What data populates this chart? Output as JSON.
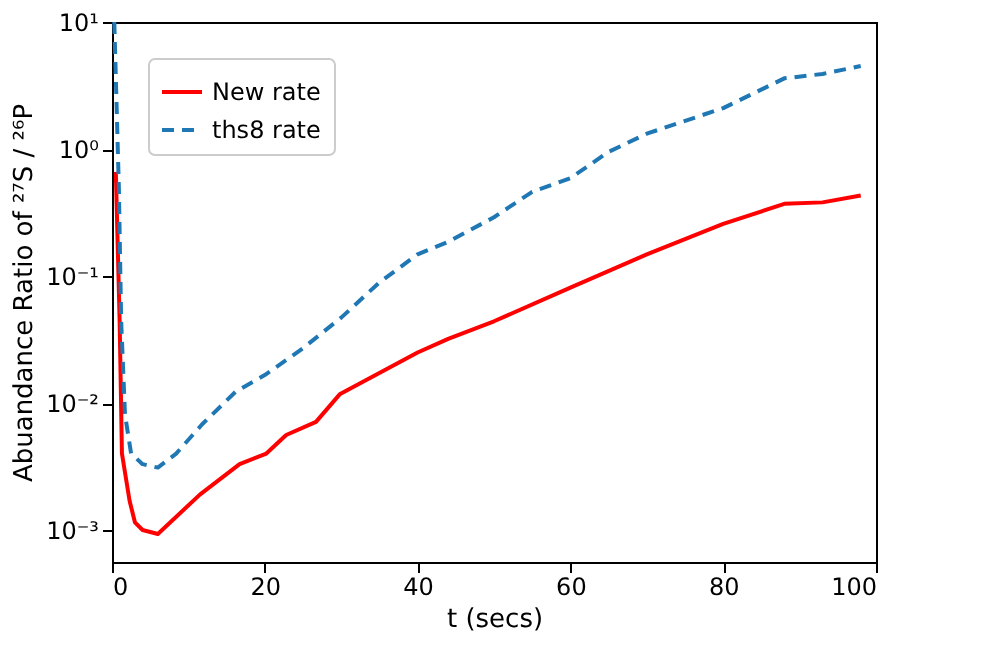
{
  "chart_data": {
    "type": "line",
    "xlabel": "t (secs)",
    "ylabel": "Abuandance Ratio of ²⁷S / ²⁶P",
    "xlim": [
      0,
      100
    ],
    "xticks": [
      0,
      20,
      40,
      60,
      80,
      100
    ],
    "ylim": [
      0.00056,
      10
    ],
    "yticks": [
      {
        "value": 10,
        "label": "10¹"
      },
      {
        "value": 1,
        "label": "10⁰"
      },
      {
        "value": 0.1,
        "label": "10⁻¹"
      },
      {
        "value": 0.01,
        "label": "10⁻²"
      },
      {
        "value": 0.001,
        "label": "10⁻³"
      }
    ],
    "log": "y",
    "grid": false,
    "legend": "top left",
    "series": [
      {
        "name": "New rate",
        "color": "#ff0000",
        "line_style": "solid",
        "x": [
          0.5,
          1.0,
          1.3,
          2.3,
          3,
          4,
          6,
          11.5,
          16.7,
          20.2,
          22.8,
          26.7,
          29.8,
          40,
          44,
          50,
          60,
          70,
          80,
          88,
          93,
          98
        ],
        "values": [
          0.66,
          0.044,
          0.004,
          0.0017,
          0.00115,
          0.001,
          0.00093,
          0.0019,
          0.0033,
          0.004,
          0.0056,
          0.0071,
          0.0117,
          0.025,
          0.032,
          0.044,
          0.081,
          0.148,
          0.257,
          0.37,
          0.38,
          0.43
        ]
      },
      {
        "name": "ths8 rate",
        "color": "#1f77b4",
        "line_style": "dashed",
        "x": [
          0.3,
          0.9,
          1.2,
          1.7,
          2.5,
          4,
          6,
          8.4,
          11.8,
          16.2,
          20,
          25,
          30,
          35,
          40,
          44,
          50,
          55,
          60,
          65,
          70,
          80,
          88,
          93,
          98
        ],
        "values": [
          10,
          0.49,
          0.044,
          0.0081,
          0.004,
          0.0033,
          0.0031,
          0.004,
          0.0068,
          0.0123,
          0.0166,
          0.027,
          0.047,
          0.089,
          0.148,
          0.186,
          0.29,
          0.46,
          0.59,
          0.95,
          1.32,
          2.1,
          3.6,
          3.9,
          4.5
        ]
      }
    ]
  }
}
